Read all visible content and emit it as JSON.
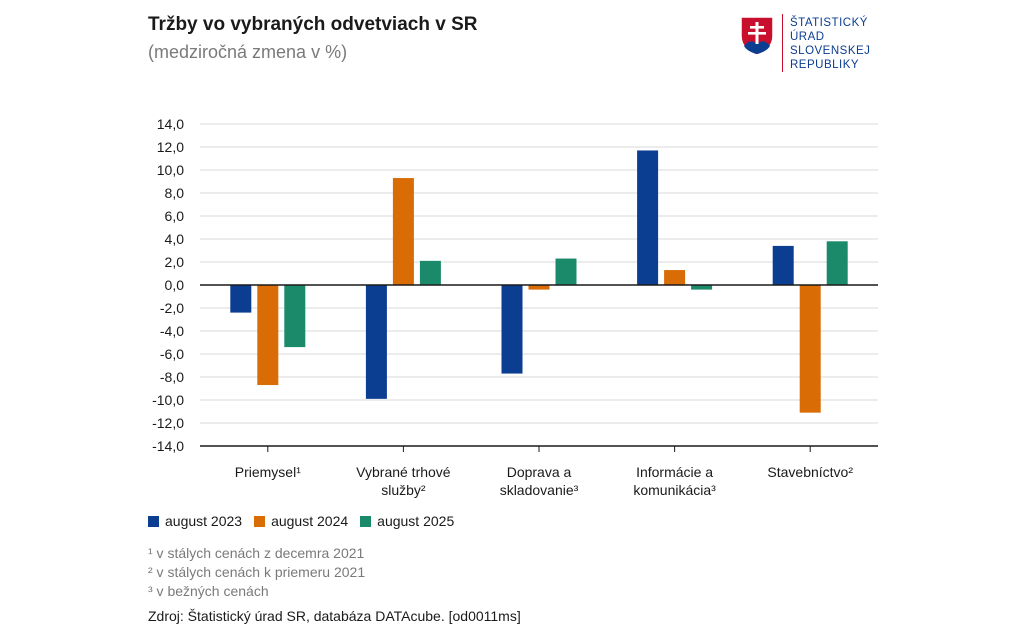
{
  "header": {
    "title": "Tržby vo vybraných odvetviach v SR",
    "subtitle": "(medziročná zmena v %)"
  },
  "logo": {
    "lines": [
      "ŠTATISTICKÝ",
      "ÚRAD",
      "SLOVENSKEJ",
      "REPUBLIKY"
    ],
    "text_color": "#0b3d91",
    "accent_color": "#c8102e"
  },
  "chart_data": {
    "type": "bar",
    "title": "Tržby vo vybraných odvetviach v SR",
    "ylabel": "",
    "xlabel": "",
    "ylim": [
      -14,
      14
    ],
    "ytick_step": 2,
    "grid": true,
    "categories": [
      [
        "Priemysel¹"
      ],
      [
        "Vybrané trhové",
        "služby²"
      ],
      [
        "Doprava a",
        "skladovanie³"
      ],
      [
        "Informácie a",
        "komunikácia³"
      ],
      [
        "Stavebníctvo²"
      ]
    ],
    "series": [
      {
        "name": "august 2023",
        "color": "#0b3d91",
        "values": [
          -2.4,
          -9.9,
          -7.7,
          11.7,
          3.4
        ]
      },
      {
        "name": "august 2024",
        "color": "#d96c04",
        "values": [
          -8.7,
          9.3,
          -0.4,
          1.3,
          -11.1
        ]
      },
      {
        "name": "august 2025",
        "color": "#1b8a6b",
        "values": [
          -5.4,
          2.1,
          2.3,
          -0.4,
          3.8
        ]
      }
    ],
    "legend_position": "bottom-left"
  },
  "footnotes": [
    "¹ v stálych cenách z decemra 2021",
    "² v stálych cenách k priemeru 2021",
    "³ v bežných cenách"
  ],
  "source": "Zdroj: Štatistický úrad SR, databáza DATAcube. [od0011ms]"
}
